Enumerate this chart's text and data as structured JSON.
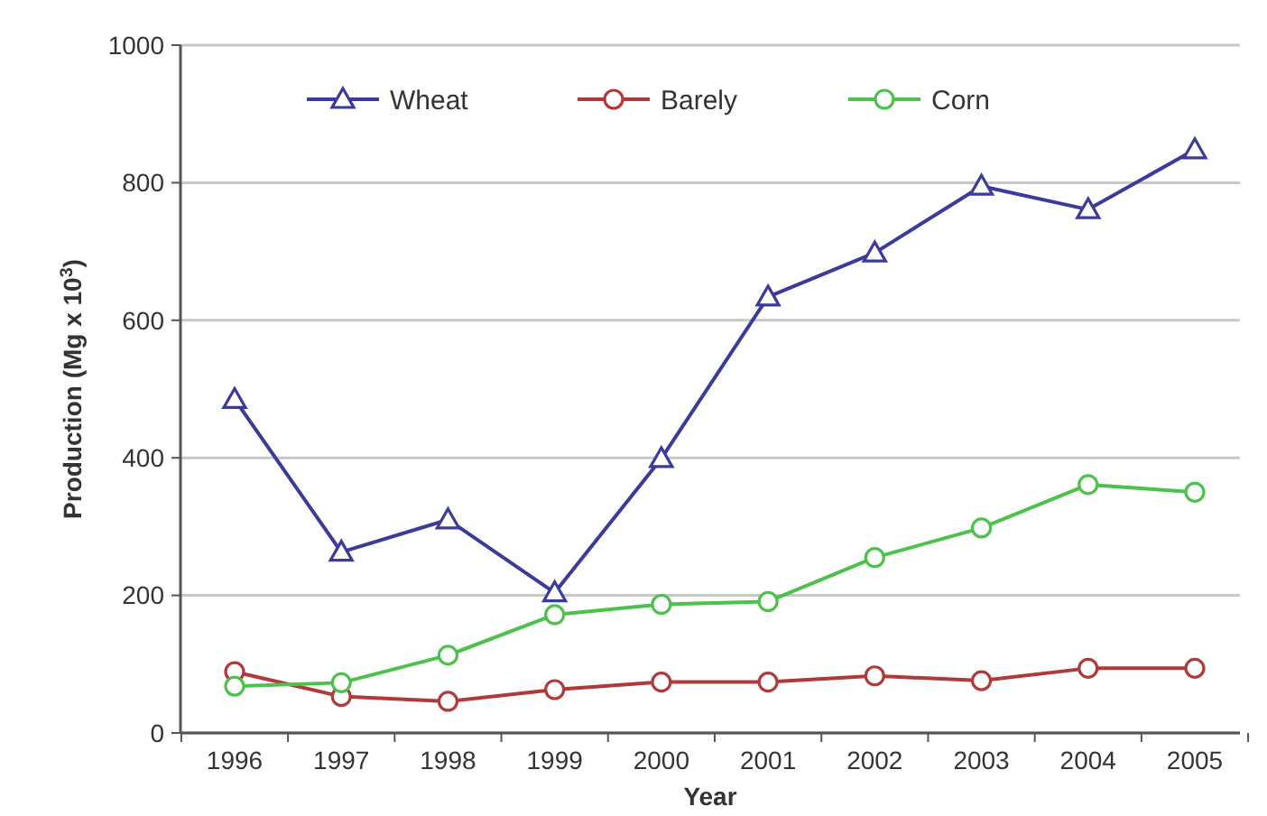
{
  "chart_data": {
    "type": "line",
    "xlabel": "Year",
    "ylabel": "Production (Mg x 10$^{3}$)",
    "categories": [
      "1996",
      "1997",
      "1998",
      "1999",
      "2000",
      "2001",
      "2002",
      "2003",
      "2004",
      "2005"
    ],
    "series": [
      {
        "name": "Wheat",
        "color": "#3b3b9a",
        "marker": "triangle",
        "values": [
          485,
          263,
          310,
          204,
          399,
          634,
          698,
          795,
          761,
          848
        ]
      },
      {
        "name": "Barely",
        "color": "#b03a3a",
        "marker": "circle",
        "values": [
          89,
          53,
          46,
          63,
          74,
          74,
          83,
          76,
          94,
          94
        ]
      },
      {
        "name": "Corn",
        "color": "#4cc24c",
        "marker": "circle",
        "values": [
          68,
          73,
          113,
          172,
          187,
          191,
          255,
          298,
          361,
          350
        ]
      }
    ],
    "ylim": [
      0,
      1000
    ],
    "yticks": [
      0,
      200,
      400,
      600,
      800,
      1000
    ],
    "grid": "y",
    "legend": "top",
    "line_style": "solid"
  }
}
